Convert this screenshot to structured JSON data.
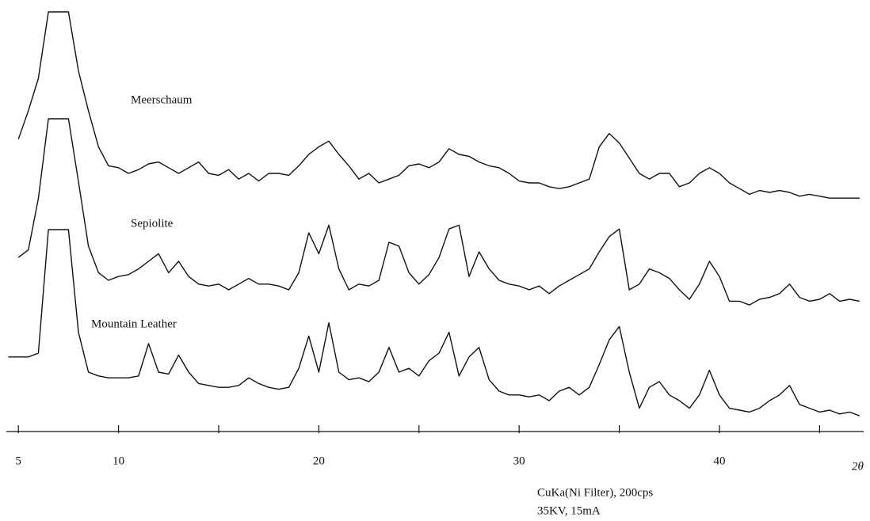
{
  "chart_data": {
    "type": "line",
    "x_label": "2θ",
    "annotations": [
      "CuKa(Ni Filter), 200cps",
      "35KV, 15mA"
    ],
    "xlim": [
      4.4,
      47.2
    ],
    "xticks": [
      5,
      10,
      {
        "value": 15,
        "label": null
      },
      20,
      {
        "value": 25,
        "label": null
      },
      30,
      {
        "value": 35,
        "label": null
      },
      40,
      {
        "value": 45,
        "label": null
      }
    ],
    "ylim": [
      0,
      100
    ],
    "x": [
      4.5,
      5,
      5.5,
      6,
      6.5,
      7,
      7.5,
      8,
      8.5,
      9,
      9.5,
      10,
      10.5,
      11,
      11.5,
      12,
      12.5,
      13,
      13.5,
      14,
      14.5,
      15,
      15.5,
      16,
      16.5,
      17,
      17.5,
      18,
      18.5,
      19,
      19.5,
      20,
      20.5,
      21,
      21.5,
      22,
      22.5,
      23,
      23.5,
      24,
      24.5,
      25,
      25.5,
      26,
      26.5,
      27,
      27.5,
      28,
      28.5,
      29,
      29.5,
      30,
      30.5,
      31,
      31.5,
      32,
      32.5,
      33,
      33.5,
      34,
      34.5,
      35,
      35.5,
      36,
      36.5,
      37,
      37.5,
      38,
      38.5,
      39,
      39.5,
      40,
      40.5,
      41,
      41.5,
      42,
      42.5,
      43,
      43.5,
      44,
      44.5,
      45,
      45.5,
      46,
      46.5,
      47
    ],
    "series": [
      {
        "name": "Meerschaum",
        "color": "#111111",
        "values": [
          null,
          33,
          48,
          65,
          100,
          100,
          100,
          69,
          48,
          29,
          19,
          18,
          15,
          17,
          20,
          21,
          18,
          15,
          18,
          21,
          15,
          14,
          17,
          12,
          15,
          11,
          15,
          15,
          14,
          19,
          25,
          29,
          32,
          25,
          19,
          12,
          15,
          10,
          12,
          14,
          19,
          20,
          18,
          21,
          28,
          25,
          24,
          21,
          19,
          18,
          15,
          11,
          10,
          10,
          8,
          7,
          8,
          10,
          12,
          29,
          36,
          31,
          23,
          15,
          12,
          15,
          15,
          8,
          10,
          15,
          18,
          15,
          10,
          7,
          4,
          6,
          5,
          6,
          5,
          3,
          4,
          3,
          2,
          2,
          2,
          2
        ]
      },
      {
        "name": "Sepiolite",
        "color": "#111111",
        "values": [
          null,
          27,
          31,
          58,
          100,
          100,
          100,
          67,
          33,
          19,
          15,
          17,
          18,
          21,
          25,
          29,
          19,
          25,
          17,
          13,
          12,
          13,
          10,
          13,
          16,
          13,
          13,
          12,
          10,
          19,
          40,
          29,
          44,
          21,
          10,
          13,
          12,
          15,
          35,
          33,
          19,
          13,
          18,
          27,
          42,
          44,
          17,
          30,
          21,
          15,
          13,
          12,
          10,
          12,
          8,
          12,
          15,
          18,
          21,
          30,
          38,
          42,
          10,
          13,
          21,
          19,
          16,
          10,
          5,
          13,
          25,
          17,
          4,
          4,
          2,
          5,
          6,
          8,
          13,
          6,
          4,
          5,
          8,
          4,
          5,
          4
        ]
      },
      {
        "name": "Mountain Leather",
        "color": "#111111",
        "values": [
          33,
          33,
          33,
          35,
          100,
          100,
          100,
          46,
          25,
          23,
          22,
          22,
          22,
          23,
          40,
          25,
          24,
          34,
          25,
          19,
          18,
          17,
          17,
          18,
          22,
          19,
          17,
          16,
          17,
          27,
          44,
          25,
          51,
          25,
          21,
          22,
          20,
          25,
          38,
          25,
          27,
          23,
          31,
          35,
          46,
          23,
          33,
          38,
          21,
          15,
          13,
          13,
          12,
          13,
          10,
          15,
          17,
          13,
          17,
          29,
          42,
          49,
          25,
          6,
          17,
          20,
          13,
          10,
          6,
          13,
          26,
          13,
          6,
          5,
          4,
          6,
          10,
          13,
          18,
          8,
          6,
          4,
          5,
          3,
          4,
          2
        ]
      }
    ]
  }
}
